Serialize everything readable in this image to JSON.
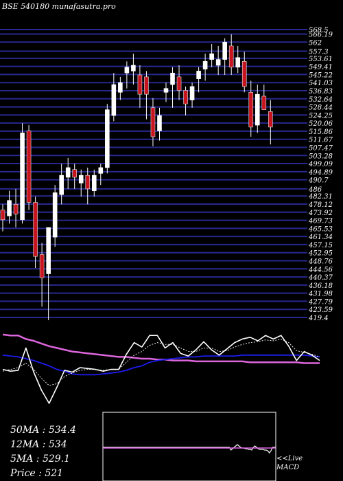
{
  "header": {
    "title": "BSE 540180  munafasutra.pro"
  },
  "colors": {
    "background": "#000000",
    "grid": "#28288f",
    "up": "#ffffff",
    "down": "#c8141e",
    "ma_long": "#dd66dd",
    "ma_short": "#1c1cf0",
    "price_line": "#ffffff"
  },
  "chart_data": [
    {
      "type": "candlestick",
      "y_tick_labels": [
        "568.5",
        "566.19",
        "562",
        "557.3",
        "553.61",
        "549.41",
        "545.22",
        "541.03",
        "536.83",
        "532.64",
        "528.44",
        "524.25",
        "520.06",
        "515.86",
        "511.67",
        "507.47",
        "503.28",
        "499.09",
        "494.89",
        "490.7",
        "486",
        "482.31",
        "478.12",
        "473.92",
        "469.73",
        "465.53",
        "461.34",
        "457.15",
        "452.95",
        "448.76",
        "444.56",
        "440.37",
        "436.18",
        "431.98",
        "427.79",
        "423.59",
        "419.4"
      ],
      "ylim": [
        419.4,
        568.5
      ],
      "candles": [
        {
          "o": 475,
          "h": 478,
          "l": 464,
          "c": 470
        },
        {
          "o": 472,
          "h": 485,
          "l": 468,
          "c": 480
        },
        {
          "o": 478,
          "h": 486,
          "l": 466,
          "c": 473
        },
        {
          "o": 470,
          "h": 520,
          "l": 468,
          "c": 515
        },
        {
          "o": 516,
          "h": 519,
          "l": 475,
          "c": 479
        },
        {
          "o": 479,
          "h": 482,
          "l": 445,
          "c": 451
        },
        {
          "o": 452,
          "h": 458,
          "l": 425,
          "c": 440
        },
        {
          "o": 442,
          "h": 466,
          "l": 418,
          "c": 466
        },
        {
          "o": 461,
          "h": 488,
          "l": 456,
          "c": 484
        },
        {
          "o": 483,
          "h": 499,
          "l": 478,
          "c": 493
        },
        {
          "o": 492,
          "h": 502,
          "l": 486,
          "c": 497
        },
        {
          "o": 496,
          "h": 499,
          "l": 486,
          "c": 492
        },
        {
          "o": 489,
          "h": 496,
          "l": 482,
          "c": 493
        },
        {
          "o": 493,
          "h": 497,
          "l": 478,
          "c": 486
        },
        {
          "o": 485,
          "h": 496,
          "l": 482,
          "c": 493
        },
        {
          "o": 494,
          "h": 499,
          "l": 488,
          "c": 497
        },
        {
          "o": 497,
          "h": 530,
          "l": 494,
          "c": 527
        },
        {
          "o": 524,
          "h": 546,
          "l": 521,
          "c": 540
        },
        {
          "o": 536,
          "h": 544,
          "l": 532,
          "c": 541
        },
        {
          "o": 546,
          "h": 552,
          "l": 538,
          "c": 549
        },
        {
          "o": 547,
          "h": 556,
          "l": 540,
          "c": 550
        },
        {
          "o": 545,
          "h": 550,
          "l": 528,
          "c": 535
        },
        {
          "o": 544,
          "h": 547,
          "l": 522,
          "c": 535
        },
        {
          "o": 528,
          "h": 533,
          "l": 508,
          "c": 513
        },
        {
          "o": 516,
          "h": 528,
          "l": 511,
          "c": 524
        },
        {
          "o": 536,
          "h": 541,
          "l": 531,
          "c": 538
        },
        {
          "o": 540,
          "h": 549,
          "l": 528,
          "c": 546
        },
        {
          "o": 544,
          "h": 550,
          "l": 532,
          "c": 537
        },
        {
          "o": 537,
          "h": 539,
          "l": 524,
          "c": 530
        },
        {
          "o": 532,
          "h": 541,
          "l": 528,
          "c": 539
        },
        {
          "o": 543,
          "h": 549,
          "l": 536,
          "c": 547
        },
        {
          "o": 548,
          "h": 556,
          "l": 542,
          "c": 552
        },
        {
          "o": 553,
          "h": 561,
          "l": 549,
          "c": 556
        },
        {
          "o": 550,
          "h": 560,
          "l": 545,
          "c": 553
        },
        {
          "o": 553,
          "h": 564,
          "l": 545,
          "c": 562
        },
        {
          "o": 560,
          "h": 566,
          "l": 545,
          "c": 549
        },
        {
          "o": 549,
          "h": 560,
          "l": 546,
          "c": 554
        },
        {
          "o": 552,
          "h": 557,
          "l": 536,
          "c": 539
        },
        {
          "o": 536,
          "h": 542,
          "l": 513,
          "c": 518
        },
        {
          "o": 519,
          "h": 540,
          "l": 515,
          "c": 535
        },
        {
          "o": 534,
          "h": 540,
          "l": 527,
          "c": 527
        },
        {
          "o": 526,
          "h": 532,
          "l": 509,
          "c": 518
        }
      ]
    },
    {
      "type": "line",
      "series": [
        {
          "color": "ma_long",
          "values": [
            87,
            86,
            86,
            82,
            80,
            77,
            74,
            72,
            70,
            68,
            67,
            66,
            65,
            64,
            63,
            62,
            62,
            61,
            60,
            60,
            59,
            59,
            58,
            58,
            58,
            57,
            57,
            57,
            57,
            57,
            57,
            57,
            56,
            56,
            56,
            56,
            56,
            56,
            56,
            55,
            55,
            55
          ]
        },
        {
          "color": "ma_short",
          "values": [
            64,
            63,
            62,
            60,
            58,
            55,
            52,
            48,
            46,
            43,
            42,
            42,
            42,
            43,
            44,
            45,
            47,
            50,
            52,
            56,
            58,
            59,
            60,
            61,
            62,
            62,
            63,
            63,
            63,
            63,
            63,
            64,
            64,
            64,
            64,
            64,
            64,
            64,
            64,
            64,
            63,
            62
          ]
        },
        {
          "color": "price_line",
          "values": [
            48,
            46,
            47,
            72,
            45,
            25,
            10,
            28,
            47,
            45,
            50,
            49,
            48,
            46,
            48,
            48,
            65,
            78,
            73,
            86,
            86,
            72,
            78,
            66,
            63,
            70,
            79,
            70,
            64,
            71,
            78,
            82,
            84,
            80,
            86,
            82,
            86,
            74,
            58,
            68,
            64,
            58
          ]
        },
        {
          "color": "ma_short_dotted",
          "values": [
            46,
            48,
            50,
            55,
            48,
            38,
            30,
            32,
            40,
            44,
            47,
            48,
            48,
            47,
            48,
            48,
            56,
            64,
            68,
            75,
            78,
            76,
            76,
            72,
            68,
            68,
            72,
            72,
            68,
            69,
            73,
            76,
            78,
            79,
            81,
            80,
            82,
            78,
            69,
            67,
            65,
            62
          ]
        }
      ]
    },
    {
      "type": "line",
      "series": [
        {
          "name": "MACD",
          "values": [
            0,
            0,
            0,
            0,
            0,
            0,
            0,
            0,
            0,
            0,
            0,
            0,
            0,
            0,
            0,
            0,
            0,
            0,
            0,
            0,
            0,
            0,
            0,
            0,
            0,
            0,
            0,
            0,
            0,
            0,
            0,
            0,
            0,
            0,
            0,
            0,
            0,
            0,
            0,
            0,
            0,
            0,
            0,
            0,
            0,
            0,
            0,
            0,
            0,
            0,
            0,
            0,
            0,
            0,
            0,
            0,
            0,
            0,
            0,
            0,
            0,
            0,
            0,
            0,
            0,
            0,
            0,
            0,
            0,
            0,
            0,
            0,
            0,
            0,
            0,
            0,
            0,
            0,
            0,
            0,
            -4,
            -2,
            0,
            2,
            4,
            2,
            0,
            -1,
            -1,
            -2,
            -2,
            -3,
            -3,
            -4,
            0,
            2,
            0,
            -2,
            -3,
            -3,
            -3,
            -4,
            -4,
            -5,
            -8,
            -5,
            0,
            0,
            0
          ]
        }
      ]
    }
  ],
  "stats": {
    "ma50": "50MA : 534.4",
    "ma12": "12MA : 534",
    "ma5": "5MA : 529.1",
    "price": "Price   : 521"
  },
  "macd": {
    "live": "<<Live",
    "label": "MACD"
  }
}
